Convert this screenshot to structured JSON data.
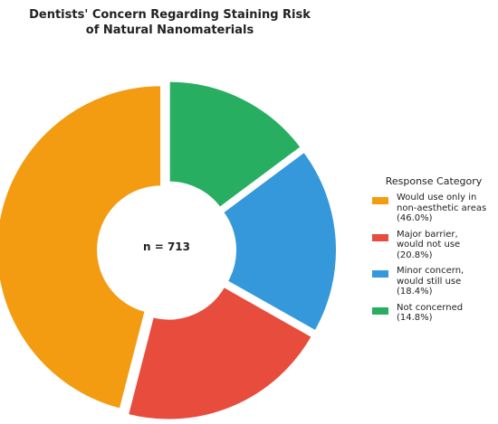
{
  "chart_data": {
    "type": "pie",
    "title": "Dentists' Concern Regarding Staining Risk\nof Natural Nanomaterials",
    "center_label": "n = 713",
    "legend_title": "Response Category",
    "legend_position": "right",
    "donut": true,
    "slices": [
      {
        "label": "Would use only in non-aesthetic areas",
        "legend_text": "Would use only in\nnon-aesthetic areas\n(46.0%)",
        "percent": 46.0,
        "color": "#f39c12"
      },
      {
        "label": "Major barrier, would not use",
        "legend_text": "Major barrier,\nwould not use\n(20.8%)",
        "percent": 20.8,
        "color": "#e74c3c"
      },
      {
        "label": "Minor concern, would still use",
        "legend_text": "Minor concern,\nwould still use\n(18.4%)",
        "percent": 18.4,
        "color": "#3498db"
      },
      {
        "label": "Not concerned",
        "legend_text": "Not concerned\n(14.8%)",
        "percent": 14.8,
        "color": "#27ae60"
      }
    ]
  }
}
